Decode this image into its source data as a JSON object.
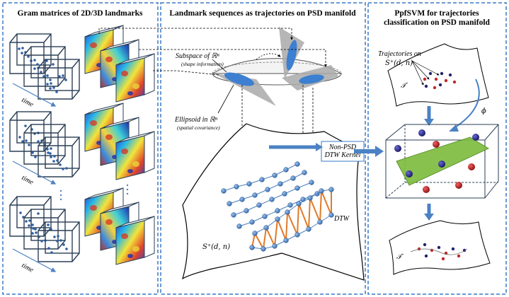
{
  "panels": {
    "left": {
      "title": "Gram matrices of 2D/3D landmarks",
      "time_label": "time"
    },
    "middle": {
      "title": "Landmark sequences as trajectories on PSD manifold",
      "subspace_label": "Subspace of ℝⁿ",
      "subspace_note": "(shape information)",
      "ellipsoid_label": "Ellipsoid in ℝⁿ",
      "ellipsoid_note": "(spatial covariance)",
      "kernel_label_1": "Non-PSD",
      "kernel_label_2": "DTW Kernel",
      "manifold_label": "S⁺(d, n)",
      "dtw_label": "DTW"
    },
    "right": {
      "title_1": "PpfSVM  for trajectories",
      "title_2": "classification on PSD manifold",
      "traj_label_1": "Trajectories on",
      "traj_label_2": "S⁺(d, n)",
      "t_symbol": "𝒯",
      "phi_symbol": "ϕ",
      "t_symbol_bottom": "𝒯"
    }
  },
  "colors": {
    "panel_border": "#3a78c6",
    "arrow_blue": "#4a82c4",
    "ellipse_blue": "#3d7fd0",
    "node_blue": "#4a7fc0",
    "dtw_orange": "#e07a2a",
    "plane_green": "#7dbb3c",
    "dot_red": "#c0282c",
    "dot_navy": "#23236e",
    "cube_stroke": "#2b3f55"
  },
  "icons": [
    "arrow-right-icon",
    "arrow-down-icon",
    "curved-arrow-icon"
  ]
}
